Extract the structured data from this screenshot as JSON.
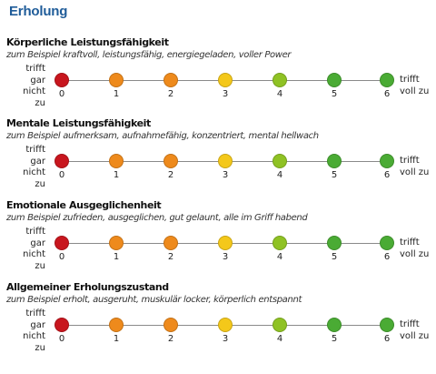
{
  "title": "Erholung",
  "scale": {
    "left_label": [
      "trifft",
      "gar nicht",
      "zu"
    ],
    "right_label": [
      "trifft",
      "voll zu"
    ],
    "points": [
      {
        "value": "0",
        "color": "#c8161e"
      },
      {
        "value": "1",
        "color": "#ee8a1c"
      },
      {
        "value": "2",
        "color": "#ee8a1c"
      },
      {
        "value": "3",
        "color": "#f4c81a"
      },
      {
        "value": "4",
        "color": "#8fc224"
      },
      {
        "value": "5",
        "color": "#4aab34"
      },
      {
        "value": "6",
        "color": "#4aab34"
      }
    ]
  },
  "sections": [
    {
      "heading": "Körperliche Leistungsfähigkeit",
      "example": "zum Beispiel kraftvoll, leistungsfähig, energiegeladen, voller Power"
    },
    {
      "heading": "Mentale Leistungsfähigkeit",
      "example": "zum Beispiel aufmerksam, aufnahmefähig, konzentriert, mental hellwach"
    },
    {
      "heading": "Emotionale Ausgeglichenheit",
      "example": "zum Beispiel zufrieden, ausgeglichen, gut gelaunt, alle im Griff habend"
    },
    {
      "heading": "Allgemeiner Erholungszustand",
      "example": "zum Beispiel erholt, ausgeruht, muskulär locker, körperlich entspannt"
    }
  ]
}
